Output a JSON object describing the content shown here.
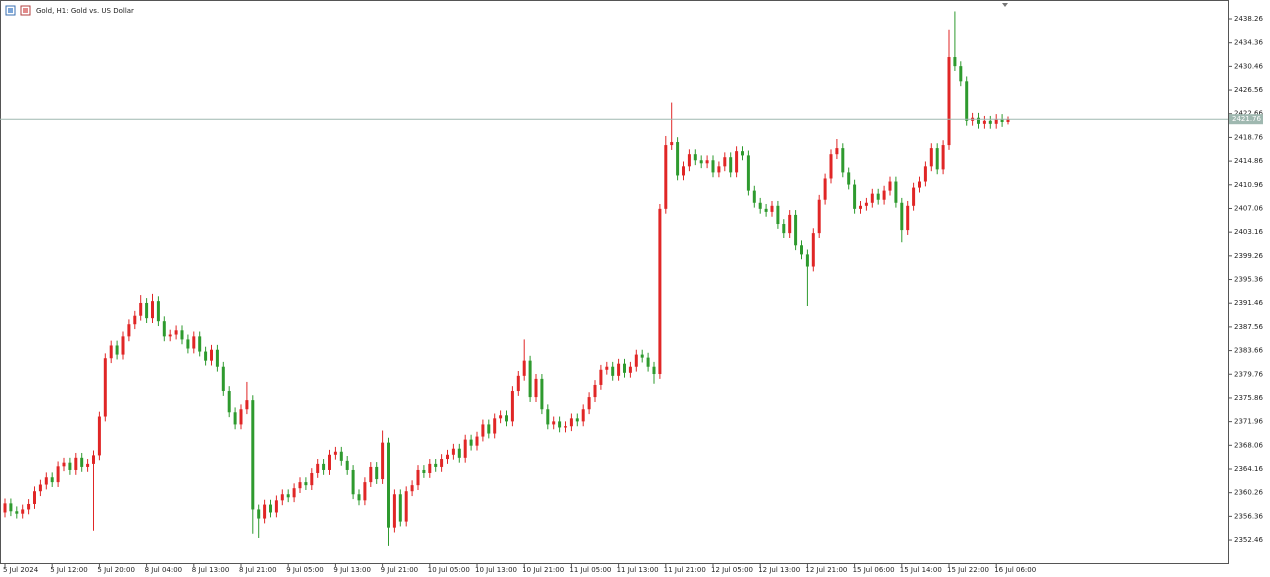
{
  "chart_data": {
    "type": "candlestick",
    "title": "Gold, H1:  Gold vs. US Dollar",
    "up_color": "#e02626",
    "down_color": "#2e9a2e",
    "price_line_color": "#9fb8b0",
    "current_price": 2421.76,
    "ylim": [
      2348.68,
      2441.39
    ],
    "yticks": [
      2438.26,
      2434.36,
      2430.46,
      2426.56,
      2422.66,
      2418.76,
      2414.86,
      2410.96,
      2407.06,
      2403.16,
      2399.26,
      2395.36,
      2391.46,
      2387.56,
      2383.66,
      2379.76,
      2375.86,
      2371.96,
      2368.06,
      2364.16,
      2360.26,
      2356.36,
      2352.46
    ],
    "categories": [
      "5 Jul 2024",
      null,
      null,
      null,
      null,
      null,
      null,
      null,
      "5 Jul 12:00",
      null,
      null,
      null,
      null,
      null,
      null,
      null,
      "5 Jul 20:00",
      null,
      null,
      null,
      null,
      null,
      null,
      null,
      "8 Jul 04:00",
      null,
      null,
      null,
      null,
      null,
      null,
      null,
      "8 Jul 13:00",
      null,
      null,
      null,
      null,
      null,
      null,
      null,
      "8 Jul 21:00",
      null,
      null,
      null,
      null,
      null,
      null,
      null,
      "9 Jul 05:00",
      null,
      null,
      null,
      null,
      null,
      null,
      null,
      "9 Jul 13:00",
      null,
      null,
      null,
      null,
      null,
      null,
      null,
      "9 Jul 21:00",
      null,
      null,
      null,
      null,
      null,
      null,
      null,
      "10 Jul 05:00",
      null,
      null,
      null,
      null,
      null,
      null,
      null,
      "10 Jul 13:00",
      null,
      null,
      null,
      null,
      null,
      null,
      null,
      "10 Jul 21:00",
      null,
      null,
      null,
      null,
      null,
      null,
      null,
      "11 Jul 05:00",
      null,
      null,
      null,
      null,
      null,
      null,
      null,
      "11 Jul 13:00",
      null,
      null,
      null,
      null,
      null,
      null,
      null,
      "11 Jul 21:00",
      null,
      null,
      null,
      null,
      null,
      null,
      null,
      "12 Jul 05:00",
      null,
      null,
      null,
      null,
      null,
      null,
      null,
      "12 Jul 13:00",
      null,
      null,
      null,
      null,
      null,
      null,
      null,
      "12 Jul 21:00",
      null,
      null,
      null,
      null,
      null,
      null,
      null,
      "15 Jul 06:00",
      null,
      null,
      null,
      null,
      null,
      null,
      null,
      "15 Jul 14:00",
      null,
      null,
      null,
      null,
      null,
      null,
      null,
      "15 Jul 22:00",
      null,
      null,
      null,
      null,
      null,
      null,
      null,
      "16 Jul 06:00",
      null,
      null
    ],
    "open": [
      2357.0,
      2358.5,
      2357.2,
      2356.8,
      2357.5,
      2358.4,
      2360.5,
      2361.6,
      2362.8,
      2362.0,
      2364.6,
      2365.2,
      2364.0,
      2366.0,
      2364.5,
      2365.0,
      2366.4,
      2372.8,
      2382.4,
      2384.5,
      2383.0,
      2386.0,
      2388.0,
      2389.4,
      2391.5,
      2389.0,
      2391.8,
      2388.5,
      2386.0,
      2386.3,
      2387.0,
      2385.5,
      2384.0,
      2386.0,
      2383.5,
      2382.0,
      2383.8,
      2381.0,
      2377.0,
      2373.5,
      2371.5,
      2374.0,
      2375.5,
      2357.5,
      2356.0,
      2358.3,
      2357.0,
      2359.0,
      2360.0,
      2359.5,
      2361.0,
      2362.0,
      2361.5,
      2363.5,
      2365.0,
      2364.0,
      2366.5,
      2367.0,
      2365.5,
      2364.0,
      2360.0,
      2359.0,
      2362.0,
      2364.5,
      2362.5,
      2368.5,
      2354.5,
      2360.0,
      2355.5,
      2360.5,
      2361.5,
      2364.0,
      2363.5,
      2365.0,
      2364.5,
      2365.8,
      2366.5,
      2367.5,
      2366.0,
      2369.0,
      2368.0,
      2369.5,
      2371.5,
      2370.0,
      2372.5,
      2373.0,
      2372.0,
      2377.0,
      2379.5,
      2382.0,
      2376.0,
      2379.0,
      2374.0,
      2371.5,
      2372.0,
      2371.0,
      2371.2,
      2372.5,
      2372.0,
      2374.0,
      2376.0,
      2378.0,
      2380.5,
      2381.0,
      2379.5,
      2381.5,
      2380.0,
      2381.0,
      2383.0,
      2382.5,
      2381.0,
      2379.8,
      2407.0,
      2417.5,
      2418.0,
      2412.5,
      2414.0,
      2416.0,
      2415.0,
      2414.5,
      2415.0,
      2413.0,
      2414.0,
      2415.5,
      2413.0,
      2416.5,
      2415.8,
      2410.0,
      2408.0,
      2407.0,
      2406.5,
      2407.5,
      2404.5,
      2403.0,
      2406.0,
      2401.0,
      2399.5,
      2397.5,
      2403.0,
      2408.5,
      2412.0,
      2416.0,
      2417.0,
      2413.0,
      2411.0,
      2407.0,
      2407.5,
      2408.0,
      2409.5,
      2408.5,
      2410.0,
      2411.5,
      2408.0,
      2403.5,
      2407.5,
      2410.5,
      2411.5,
      2414.0,
      2417.0,
      2413.5,
      2417.5,
      2432.0,
      2430.5,
      2428.0,
      2421.5,
      2422.0,
      2421.0,
      2421.5,
      2421.0,
      2421.8,
      2421.3
    ],
    "high": [
      2359.3,
      2359.3,
      2358.0,
      2358.3,
      2359.2,
      2361.3,
      2362.4,
      2363.6,
      2363.6,
      2365.4,
      2366.0,
      2366.0,
      2366.8,
      2366.8,
      2365.8,
      2367.2,
      2373.6,
      2383.2,
      2385.3,
      2385.3,
      2386.8,
      2388.8,
      2390.2,
      2392.8,
      2392.3,
      2393.0,
      2392.6,
      2389.3,
      2387.1,
      2387.8,
      2387.8,
      2386.3,
      2386.8,
      2386.8,
      2384.3,
      2384.6,
      2384.6,
      2381.8,
      2377.8,
      2374.3,
      2374.8,
      2378.5,
      2376.3,
      2358.3,
      2359.1,
      2359.1,
      2359.8,
      2360.8,
      2360.8,
      2361.8,
      2362.8,
      2362.8,
      2364.3,
      2365.8,
      2365.8,
      2367.3,
      2367.8,
      2367.8,
      2366.3,
      2364.8,
      2360.8,
      2362.8,
      2365.3,
      2365.3,
      2370.5,
      2369.3,
      2360.8,
      2360.8,
      2361.3,
      2362.3,
      2364.8,
      2364.8,
      2365.8,
      2365.8,
      2366.6,
      2367.3,
      2368.3,
      2368.3,
      2369.8,
      2369.8,
      2370.3,
      2372.3,
      2372.3,
      2373.3,
      2373.8,
      2373.8,
      2377.8,
      2380.3,
      2385.5,
      2382.8,
      2379.8,
      2379.8,
      2374.8,
      2372.8,
      2372.8,
      2372.0,
      2373.3,
      2373.3,
      2374.8,
      2376.8,
      2378.8,
      2381.3,
      2381.8,
      2381.8,
      2382.3,
      2382.3,
      2381.8,
      2383.8,
      2383.8,
      2383.3,
      2381.8,
      2407.8,
      2419.0,
      2424.5,
      2418.8,
      2414.8,
      2416.8,
      2416.8,
      2415.8,
      2415.8,
      2415.8,
      2414.8,
      2416.3,
      2416.3,
      2417.3,
      2417.3,
      2416.6,
      2410.8,
      2408.8,
      2407.8,
      2408.3,
      2408.3,
      2405.3,
      2406.8,
      2406.8,
      2401.8,
      2400.3,
      2403.8,
      2409.3,
      2412.8,
      2416.8,
      2418.5,
      2417.8,
      2413.8,
      2411.8,
      2408.3,
      2408.8,
      2410.3,
      2410.3,
      2410.8,
      2412.3,
      2412.3,
      2408.8,
      2408.3,
      2411.3,
      2412.3,
      2414.8,
      2417.8,
      2417.8,
      2418.3,
      2436.5,
      2439.5,
      2431.3,
      2428.8,
      2422.8,
      2422.8,
      2422.3,
      2422.3,
      2422.6,
      2422.6,
      2422.2
    ],
    "low": [
      2356.2,
      2356.4,
      2356.0,
      2356.0,
      2356.7,
      2357.6,
      2359.7,
      2360.8,
      2361.2,
      2361.2,
      2363.8,
      2363.2,
      2363.2,
      2363.7,
      2363.7,
      2354.0,
      2365.6,
      2372.0,
      2381.6,
      2382.2,
      2382.2,
      2385.2,
      2387.2,
      2388.6,
      2388.2,
      2388.2,
      2387.7,
      2385.2,
      2385.2,
      2385.5,
      2384.7,
      2383.2,
      2383.2,
      2382.7,
      2381.2,
      2381.2,
      2380.2,
      2376.2,
      2372.7,
      2370.7,
      2370.7,
      2373.2,
      2353.5,
      2352.8,
      2355.2,
      2356.2,
      2356.2,
      2358.2,
      2358.7,
      2358.7,
      2360.2,
      2360.7,
      2360.7,
      2362.7,
      2363.2,
      2363.2,
      2365.7,
      2364.7,
      2363.2,
      2359.2,
      2358.2,
      2358.2,
      2361.2,
      2361.7,
      2361.7,
      2351.5,
      2353.7,
      2354.7,
      2354.7,
      2359.7,
      2360.7,
      2362.7,
      2362.7,
      2363.7,
      2363.7,
      2365.0,
      2365.7,
      2365.2,
      2365.2,
      2367.2,
      2367.2,
      2368.7,
      2369.2,
      2369.2,
      2371.7,
      2371.2,
      2371.2,
      2376.2,
      2378.7,
      2375.2,
      2375.2,
      2373.2,
      2370.7,
      2370.7,
      2370.2,
      2370.2,
      2370.4,
      2371.2,
      2371.2,
      2373.2,
      2375.2,
      2377.2,
      2379.7,
      2378.7,
      2378.7,
      2379.2,
      2379.2,
      2380.2,
      2381.7,
      2380.2,
      2378.2,
      2379.0,
      2406.2,
      2416.7,
      2411.7,
      2411.7,
      2413.2,
      2414.2,
      2413.7,
      2413.7,
      2412.2,
      2412.2,
      2413.2,
      2412.2,
      2412.2,
      2415.0,
      2409.2,
      2407.2,
      2406.2,
      2405.7,
      2405.7,
      2403.7,
      2402.2,
      2402.2,
      2400.2,
      2398.7,
      2391.0,
      2396.7,
      2402.2,
      2407.7,
      2411.2,
      2415.2,
      2412.2,
      2410.2,
      2406.2,
      2406.2,
      2406.7,
      2407.2,
      2407.7,
      2407.7,
      2409.2,
      2407.2,
      2401.5,
      2402.7,
      2406.7,
      2409.7,
      2410.7,
      2413.2,
      2412.7,
      2412.7,
      2416.7,
      2429.7,
      2427.2,
      2420.7,
      2420.7,
      2420.2,
      2420.2,
      2420.2,
      2420.2,
      2420.5,
      2420.9
    ],
    "close": [
      2358.5,
      2357.2,
      2356.8,
      2357.5,
      2358.4,
      2360.5,
      2361.6,
      2362.8,
      2362.0,
      2364.6,
      2365.2,
      2364.0,
      2366.0,
      2364.5,
      2365.0,
      2366.4,
      2372.8,
      2382.4,
      2384.5,
      2383.0,
      2386.0,
      2388.0,
      2389.4,
      2391.5,
      2389.0,
      2391.8,
      2388.5,
      2386.0,
      2386.3,
      2387.0,
      2385.5,
      2384.0,
      2386.0,
      2383.5,
      2382.0,
      2383.8,
      2381.0,
      2377.0,
      2373.5,
      2371.5,
      2374.0,
      2375.5,
      2357.5,
      2356.0,
      2358.3,
      2357.0,
      2359.0,
      2360.0,
      2359.5,
      2361.0,
      2362.0,
      2361.5,
      2363.5,
      2365.0,
      2364.0,
      2366.5,
      2367.0,
      2365.5,
      2364.0,
      2360.0,
      2359.0,
      2362.0,
      2364.5,
      2362.5,
      2368.5,
      2354.5,
      2360.0,
      2355.5,
      2360.5,
      2361.5,
      2364.0,
      2363.5,
      2365.0,
      2364.5,
      2365.8,
      2366.5,
      2367.5,
      2366.0,
      2369.0,
      2368.0,
      2369.5,
      2371.5,
      2370.0,
      2372.5,
      2373.0,
      2372.0,
      2377.0,
      2379.5,
      2382.0,
      2376.0,
      2379.0,
      2374.0,
      2371.5,
      2372.0,
      2371.0,
      2371.2,
      2372.5,
      2372.0,
      2374.0,
      2376.0,
      2378.0,
      2380.5,
      2381.0,
      2379.5,
      2381.5,
      2380.0,
      2381.0,
      2383.0,
      2382.5,
      2381.0,
      2379.8,
      2407.0,
      2417.5,
      2418.0,
      2412.5,
      2414.0,
      2416.0,
      2415.0,
      2414.5,
      2415.0,
      2413.0,
      2414.0,
      2415.5,
      2413.0,
      2416.5,
      2415.8,
      2410.0,
      2408.0,
      2407.0,
      2406.5,
      2407.5,
      2404.5,
      2403.0,
      2406.0,
      2401.0,
      2399.5,
      2397.5,
      2403.0,
      2408.5,
      2412.0,
      2416.0,
      2417.0,
      2413.0,
      2411.0,
      2407.0,
      2407.5,
      2408.0,
      2409.5,
      2408.5,
      2410.0,
      2411.5,
      2408.0,
      2403.5,
      2407.5,
      2410.5,
      2411.5,
      2414.0,
      2417.0,
      2413.5,
      2417.5,
      2432.0,
      2430.5,
      2428.0,
      2421.5,
      2422.0,
      2421.0,
      2421.5,
      2421.0,
      2421.8,
      2421.3,
      2421.76
    ]
  }
}
